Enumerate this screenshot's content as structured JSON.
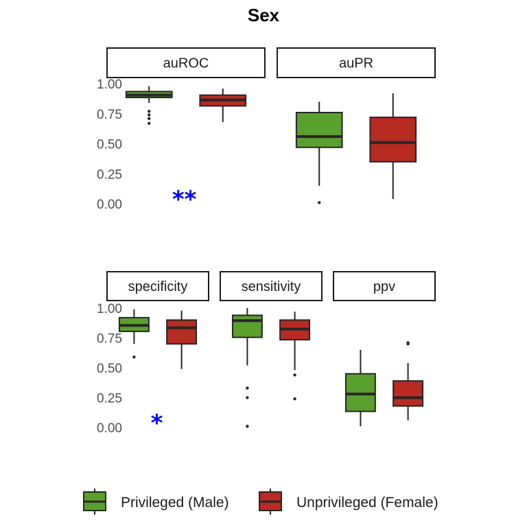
{
  "chart_data": {
    "type": "boxplot",
    "title": "Sex",
    "y_ticks": [
      "0.00",
      "0.25",
      "0.50",
      "0.75",
      "1.00"
    ],
    "ylim": [
      0,
      1
    ],
    "legend_position": "bottom",
    "series": [
      {
        "name": "Privileged (Male)",
        "color": "#5aa02c"
      },
      {
        "name": "Unprivileged (Female)",
        "color": "#b72b22"
      }
    ],
    "rows": [
      {
        "panels": [
          {
            "label": "auROC",
            "significance": "**",
            "boxes": [
              {
                "series": "Privileged (Male)",
                "whisker_low": 0.84,
                "q1": 0.885,
                "median": 0.905,
                "q3": 0.935,
                "whisker_high": 0.98,
                "outliers": [
                  0.67,
                  0.71,
                  0.74,
                  0.77
                ]
              },
              {
                "series": "Unprivileged (Female)",
                "whisker_low": 0.68,
                "q1": 0.815,
                "median": 0.865,
                "q3": 0.905,
                "whisker_high": 0.96,
                "outliers": []
              }
            ]
          },
          {
            "label": "auPR",
            "significance": "",
            "boxes": [
              {
                "series": "Privileged (Male)",
                "whisker_low": 0.15,
                "q1": 0.47,
                "median": 0.56,
                "q3": 0.76,
                "whisker_high": 0.85,
                "outliers": [
                  0.01
                ]
              },
              {
                "series": "Unprivileged (Female)",
                "whisker_low": 0.04,
                "q1": 0.35,
                "median": 0.51,
                "q3": 0.72,
                "whisker_high": 0.92,
                "outliers": []
              }
            ]
          }
        ]
      },
      {
        "panels": [
          {
            "label": "specificity",
            "significance": "*",
            "boxes": [
              {
                "series": "Privileged (Male)",
                "whisker_low": 0.7,
                "q1": 0.805,
                "median": 0.855,
                "q3": 0.92,
                "whisker_high": 0.99,
                "outliers": [
                  0.59
                ]
              },
              {
                "series": "Unprivileged (Female)",
                "whisker_low": 0.49,
                "q1": 0.7,
                "median": 0.835,
                "q3": 0.9,
                "whisker_high": 0.98,
                "outliers": []
              }
            ]
          },
          {
            "label": "sensitivity",
            "significance": "",
            "boxes": [
              {
                "series": "Privileged (Male)",
                "whisker_low": 0.52,
                "q1": 0.755,
                "median": 0.895,
                "q3": 0.94,
                "whisker_high": 1.0,
                "outliers": [
                  0.01,
                  0.25,
                  0.33
                ]
              },
              {
                "series": "Unprivileged (Female)",
                "whisker_low": 0.48,
                "q1": 0.735,
                "median": 0.825,
                "q3": 0.9,
                "whisker_high": 0.97,
                "outliers": [
                  0.24,
                  0.44
                ]
              }
            ]
          },
          {
            "label": "ppv",
            "significance": "",
            "boxes": [
              {
                "series": "Privileged (Male)",
                "whisker_low": 0.01,
                "q1": 0.135,
                "median": 0.28,
                "q3": 0.45,
                "whisker_high": 0.65,
                "outliers": []
              },
              {
                "series": "Unprivileged (Female)",
                "whisker_low": 0.06,
                "q1": 0.18,
                "median": 0.25,
                "q3": 0.39,
                "whisker_high": 0.54,
                "outliers": [
                  0.7,
                  0.71
                ]
              }
            ]
          }
        ]
      }
    ]
  }
}
